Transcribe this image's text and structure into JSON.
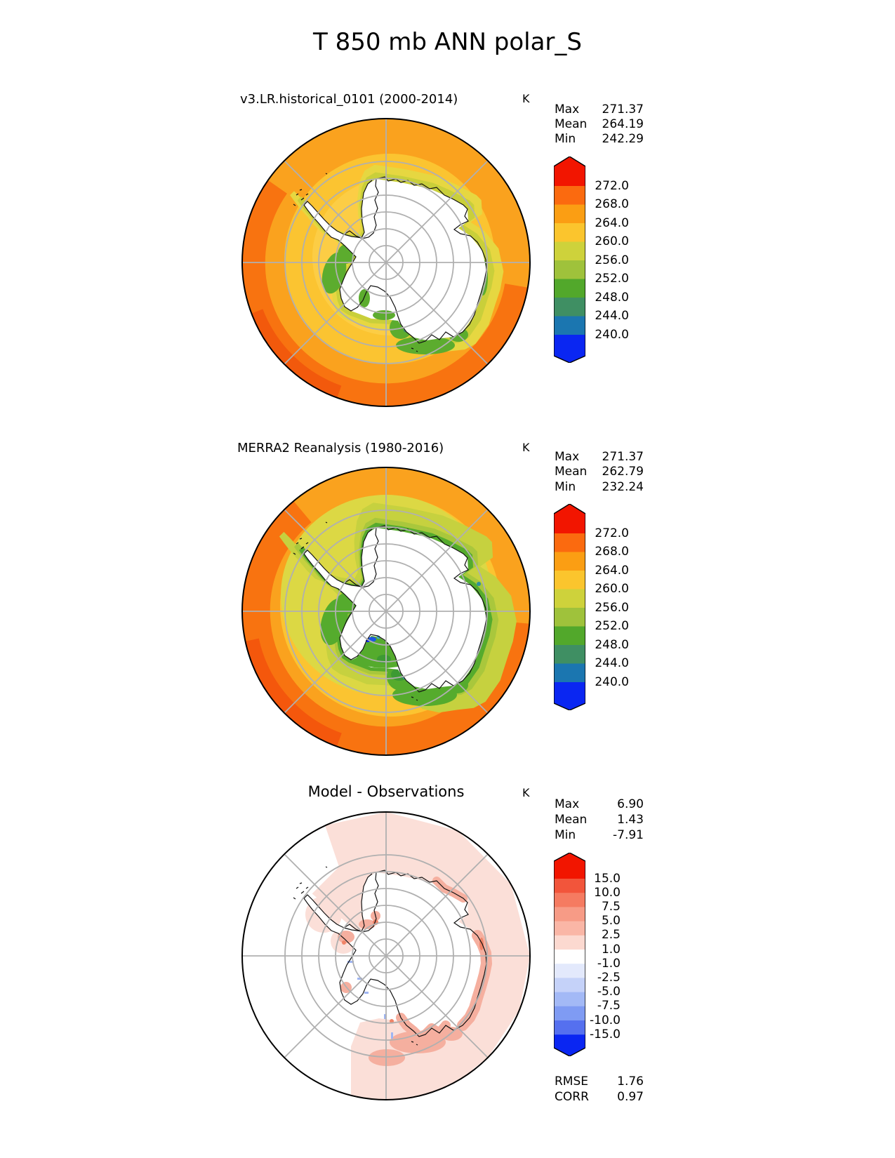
{
  "title": "T 850 mb ANN polar_S",
  "panel1": {
    "subtitle": "v3.LR.historical_0101 (2000-2014)",
    "units": "K",
    "stats": {
      "max_label": "Max",
      "max_value": "271.37",
      "mean_label": "Mean",
      "mean_value": "264.19",
      "min_label": "Min",
      "min_value": "242.29"
    },
    "colorbar": {
      "tick_labels": [
        "272.0",
        "268.0",
        "264.0",
        "260.0",
        "256.0",
        "252.0",
        "248.0",
        "244.0",
        "240.0"
      ],
      "segment_colors": [
        "#F21500",
        "#FB6A0F",
        "#FB9E13",
        "#FBC52D",
        "#CED23B",
        "#9FC23B",
        "#52A82B",
        "#3F8F63",
        "#1B76B0",
        "#0A26F2"
      ]
    }
  },
  "panel2": {
    "subtitle": "MERRA2 Reanalysis (1980-2016)",
    "units": "K",
    "stats": {
      "max_label": "Max",
      "max_value": "271.37",
      "mean_label": "Mean",
      "mean_value": "262.79",
      "min_label": "Min",
      "min_value": "232.24"
    },
    "colorbar": {
      "tick_labels": [
        "272.0",
        "268.0",
        "264.0",
        "260.0",
        "256.0",
        "252.0",
        "248.0",
        "244.0",
        "240.0"
      ],
      "segment_colors": [
        "#F21500",
        "#FB6A0F",
        "#FB9E13",
        "#FBC52D",
        "#CED23B",
        "#9FC23B",
        "#52A82B",
        "#3F8F63",
        "#1B76B0",
        "#0A26F2"
      ]
    }
  },
  "panel3": {
    "subtitle": "Model - Observations",
    "units": "K",
    "stats": {
      "max_label": "Max",
      "max_value": "6.90",
      "mean_label": "Mean",
      "mean_value": "1.43",
      "min_label": "Min",
      "min_value": "-7.91"
    },
    "colorbar": {
      "tick_labels": [
        "15.0",
        "10.0",
        "7.5",
        "5.0",
        "2.5",
        "1.0",
        "-1.0",
        "-2.5",
        "-5.0",
        "-7.5",
        "-10.0",
        "-15.0"
      ],
      "segment_colors": [
        "#F21500",
        "#F2553B",
        "#F57B61",
        "#F79B86",
        "#FAB6A6",
        "#FCD9D0",
        "#FFFFFF",
        "#E3E9FC",
        "#C5D2F9",
        "#A3B9F6",
        "#7F9BF3",
        "#5570EF",
        "#0A26F2"
      ]
    },
    "metrics": {
      "rmse_label": "RMSE",
      "rmse_value": "1.76",
      "corr_label": "CORR",
      "corr_value": "0.97"
    }
  },
  "chart_data": {
    "type": "heatmap",
    "title": "T 850 mb ANN polar_S",
    "variable": "T",
    "level": "850 mb",
    "season": "ANN",
    "region": "polar_S",
    "units": "K",
    "projection": "south polar stereographic",
    "panels": [
      {
        "name": "v3.LR.historical_0101 (2000-2014)",
        "role": "model",
        "max": 271.37,
        "mean": 264.19,
        "min": 242.29,
        "contour_levels": [
          240.0,
          244.0,
          248.0,
          252.0,
          256.0,
          260.0,
          264.0,
          268.0,
          272.0
        ],
        "colormap": "rainbow, red (warm) at rim to blue (cold), interior of Antarctica masked white"
      },
      {
        "name": "MERRA2 Reanalysis (1980-2016)",
        "role": "reference",
        "max": 271.37,
        "mean": 262.79,
        "min": 232.24,
        "contour_levels": [
          240.0,
          244.0,
          248.0,
          252.0,
          256.0,
          260.0,
          264.0,
          268.0,
          272.0
        ],
        "colormap": "rainbow, red (warm) at rim to blue (cold), interior of Antarctica masked white"
      },
      {
        "name": "Model - Observations",
        "role": "difference",
        "max": 6.9,
        "mean": 1.43,
        "min": -7.91,
        "rmse": 1.76,
        "corr": 0.97,
        "contour_levels": [
          -15.0,
          -10.0,
          -7.5,
          -5.0,
          -2.5,
          -1.0,
          1.0,
          2.5,
          5.0,
          7.5,
          10.0,
          15.0
        ],
        "colormap": "red-white-blue diverging; mostly light red bias over ocean, white over left sector and continent interior"
      }
    ],
    "legend_position": "right of each panel",
    "grid": "polar graticule, gray circles every 10 deg latitude and meridians every 45 deg"
  }
}
